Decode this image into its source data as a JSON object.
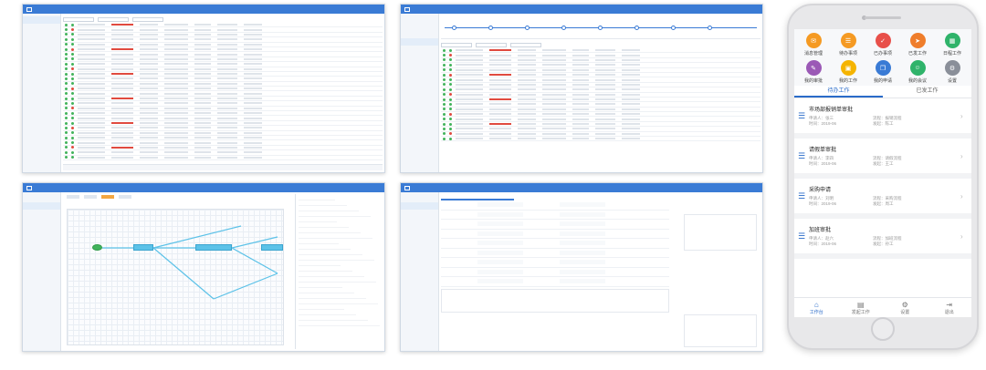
{
  "phone": {
    "apps": [
      {
        "label": "消息管理",
        "icon": "chat-icon",
        "color": "#f59a23",
        "glyph": "✉"
      },
      {
        "label": "待办事项",
        "icon": "list-icon",
        "color": "#f59a23",
        "glyph": "☰"
      },
      {
        "label": "已办事项",
        "icon": "check-icon",
        "color": "#e8504a",
        "glyph": "✓"
      },
      {
        "label": "已发工作",
        "icon": "send-icon",
        "color": "#ef7d2b",
        "glyph": "➤"
      },
      {
        "label": "日程工作",
        "icon": "calendar-icon",
        "color": "#2fb36a",
        "glyph": "▦"
      },
      {
        "label": "我的审批",
        "icon": "stamp-icon",
        "color": "#9b59b6",
        "glyph": "✎"
      },
      {
        "label": "我的工作",
        "icon": "briefcase-icon",
        "color": "#f5b400",
        "glyph": "▣"
      },
      {
        "label": "我的申请",
        "icon": "doc-icon",
        "color": "#3a7bd5",
        "glyph": "❐"
      },
      {
        "label": "我的会议",
        "icon": "people-icon",
        "color": "#2fb36a",
        "glyph": "☺"
      },
      {
        "label": "设置",
        "icon": "gear-icon",
        "color": "#8a8f99",
        "glyph": "⚙"
      }
    ],
    "tabs": [
      "待办工作",
      "已发工作"
    ],
    "active_tab": 0,
    "cards": [
      {
        "title": "市场部报销单审批",
        "m1": "申请人：张三",
        "m2": "流程：报销流程",
        "m3": "时间：2019-06",
        "m4": "发起：陈工"
      },
      {
        "title": "请假单审批",
        "m1": "申请人：李四",
        "m2": "流程：请假流程",
        "m3": "时间：2019-06",
        "m4": "发起：王工"
      },
      {
        "title": "采购申请",
        "m1": "申请人：刘明",
        "m2": "流程：采购流程",
        "m3": "时间：2019-06",
        "m4": "发起：周工"
      },
      {
        "title": "加班审批",
        "m1": "申请人：赵六",
        "m2": "流程：加班流程",
        "m3": "时间：2019-06",
        "m4": "发起：孙工"
      }
    ],
    "bottom_nav": [
      {
        "label": "工作台",
        "icon": "home-icon",
        "glyph": "⌂"
      },
      {
        "label": "发起工作",
        "icon": "doc-icon",
        "glyph": "▤"
      },
      {
        "label": "设置",
        "icon": "gear-icon",
        "glyph": "⚙"
      },
      {
        "label": "退出",
        "icon": "logout-icon",
        "glyph": "⇥"
      }
    ]
  },
  "colors": {
    "primary": "#3a7bd5",
    "node": "#5cc2e8",
    "ok": "#42b35c",
    "warn": "#e04a3f"
  }
}
